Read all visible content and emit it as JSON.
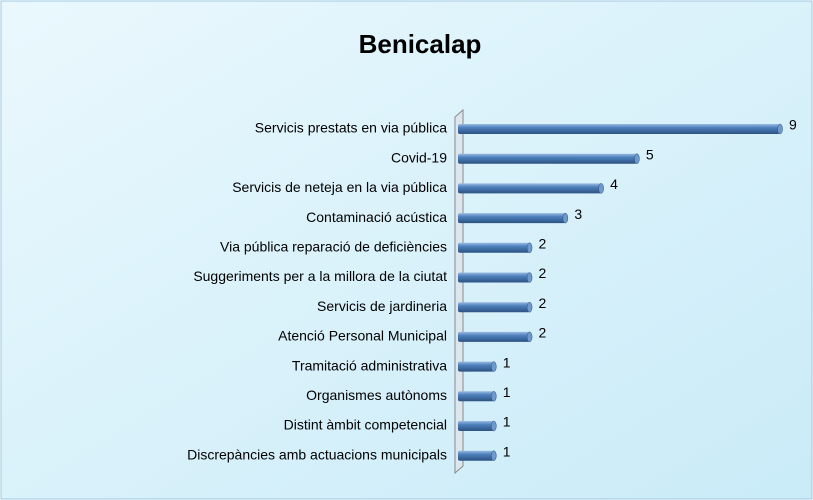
{
  "chart_data": {
    "type": "bar",
    "orientation": "horizontal",
    "title": "Benicalap",
    "categories": [
      "Servicis prestats en via pública",
      "Covid-19",
      "Servicis de neteja en la via pública",
      "Contaminació acústica",
      "Via pública reparació de deficiències",
      "Suggeriments per a la millora de la ciutat",
      "Servicis de jardineria",
      "Atenció Personal Municipal",
      "Tramitació administrativa",
      "Organismes autònoms",
      "Distint àmbit competencial",
      "Discrepàncies amb actuacions municipals"
    ],
    "values": [
      9,
      5,
      4,
      3,
      2,
      2,
      2,
      2,
      1,
      1,
      1,
      1
    ],
    "color": "#4f81bd"
  }
}
